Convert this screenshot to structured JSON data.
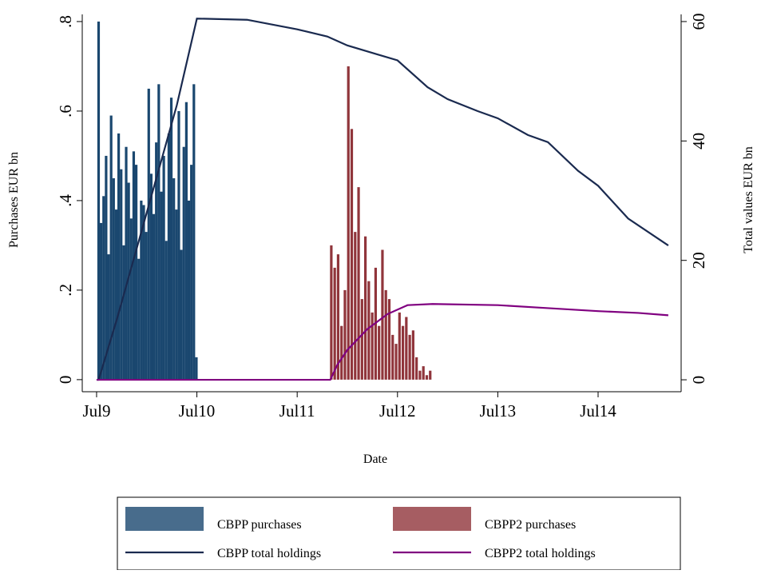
{
  "chart_data": {
    "type": "bar",
    "xlabel": "Date",
    "ylabel": "Purchases EUR bn",
    "y2label": "Total values EUR bn",
    "xlim": [
      2009.357,
      2015.328
    ],
    "xticks": [
      {
        "value": 2009.5,
        "label": "Jul9"
      },
      {
        "value": 2010.5,
        "label": "Jul10"
      },
      {
        "value": 2011.5,
        "label": "Jul11"
      },
      {
        "value": 2012.5,
        "label": "Jul12"
      },
      {
        "value": 2013.5,
        "label": "Jul13"
      },
      {
        "value": 2014.5,
        "label": "Jul14"
      }
    ],
    "ylim": [
      -0.027,
      0.816
    ],
    "yticks": [
      0,
      {
        "value": 0.2,
        "label": ".2"
      },
      {
        "value": 0.4,
        "label": ".4"
      },
      {
        "value": 0.6,
        "label": ".6"
      },
      {
        "value": 0.8,
        "label": ".8"
      }
    ],
    "y2lim": [
      -2.0,
      61.2
    ],
    "y2ticks": [
      0,
      20,
      40,
      60
    ],
    "series": [
      {
        "name": "CBPP purchases",
        "type": "bar",
        "color": "#1a476f",
        "x": [
          2009.52,
          2009.545,
          2009.57,
          2009.595,
          2009.62,
          2009.645,
          2009.67,
          2009.695,
          2009.72,
          2009.745,
          2009.77,
          2009.795,
          2009.82,
          2009.845,
          2009.87,
          2009.895,
          2009.92,
          2009.945,
          2009.97,
          2009.995,
          2010.02,
          2010.045,
          2010.07,
          2010.095,
          2010.12,
          2010.145,
          2010.17,
          2010.195,
          2010.22,
          2010.245,
          2010.27,
          2010.295,
          2010.32,
          2010.345,
          2010.37,
          2010.395,
          2010.42,
          2010.445,
          2010.47,
          2010.495
        ],
        "values": [
          0.8,
          0.35,
          0.41,
          0.5,
          0.28,
          0.59,
          0.45,
          0.38,
          0.55,
          0.47,
          0.3,
          0.52,
          0.44,
          0.36,
          0.51,
          0.48,
          0.27,
          0.4,
          0.39,
          0.33,
          0.65,
          0.46,
          0.37,
          0.53,
          0.66,
          0.42,
          0.5,
          0.31,
          0.55,
          0.63,
          0.45,
          0.38,
          0.6,
          0.29,
          0.52,
          0.62,
          0.4,
          0.48,
          0.66,
          0.05
        ]
      },
      {
        "name": "CBPP2 purchases",
        "type": "bar",
        "color": "#90353b",
        "x": [
          2011.84,
          2011.874,
          2011.908,
          2011.942,
          2011.976,
          2012.01,
          2012.044,
          2012.078,
          2012.112,
          2012.146,
          2012.18,
          2012.214,
          2012.248,
          2012.282,
          2012.316,
          2012.35,
          2012.384,
          2012.418,
          2012.452,
          2012.486,
          2012.52,
          2012.554,
          2012.588,
          2012.622,
          2012.656,
          2012.69,
          2012.724,
          2012.758,
          2012.792,
          2012.826
        ],
        "values": [
          0.3,
          0.25,
          0.28,
          0.12,
          0.2,
          0.7,
          0.56,
          0.33,
          0.43,
          0.18,
          0.32,
          0.22,
          0.15,
          0.25,
          0.12,
          0.29,
          0.2,
          0.18,
          0.1,
          0.08,
          0.15,
          0.12,
          0.14,
          0.1,
          0.11,
          0.05,
          0.02,
          0.03,
          0.01,
          0.02
        ]
      },
      {
        "name": "CBPP total holdings",
        "type": "line",
        "axis": "y2",
        "color": "#1a2a4f",
        "x": [
          2009.5,
          2009.52,
          2009.7,
          2009.9,
          2010.1,
          2010.3,
          2010.5,
          2011.0,
          2011.5,
          2011.8,
          2012.0,
          2012.3,
          2012.5,
          2012.8,
          2013.0,
          2013.3,
          2013.5,
          2013.8,
          2014.0,
          2014.3,
          2014.5,
          2014.8,
          2015.2
        ],
        "values": [
          0,
          0,
          10,
          22,
          34,
          46,
          60.5,
          60.3,
          58.7,
          57.5,
          56,
          54.5,
          53.5,
          49,
          47,
          45,
          43.8,
          41,
          39.8,
          35,
          32.5,
          27,
          22.5
        ]
      },
      {
        "name": "CBPP2 total holdings",
        "type": "line",
        "axis": "y2",
        "color": "#800080",
        "x": [
          2009.5,
          2011.83,
          2011.9,
          2012.0,
          2012.2,
          2012.4,
          2012.6,
          2012.85,
          2013.5,
          2014.0,
          2014.5,
          2014.9,
          2015.2
        ],
        "values": [
          0,
          0,
          2.5,
          5,
          8.5,
          11,
          12.5,
          12.7,
          12.5,
          12,
          11.5,
          11.2,
          10.8
        ]
      }
    ]
  }
}
